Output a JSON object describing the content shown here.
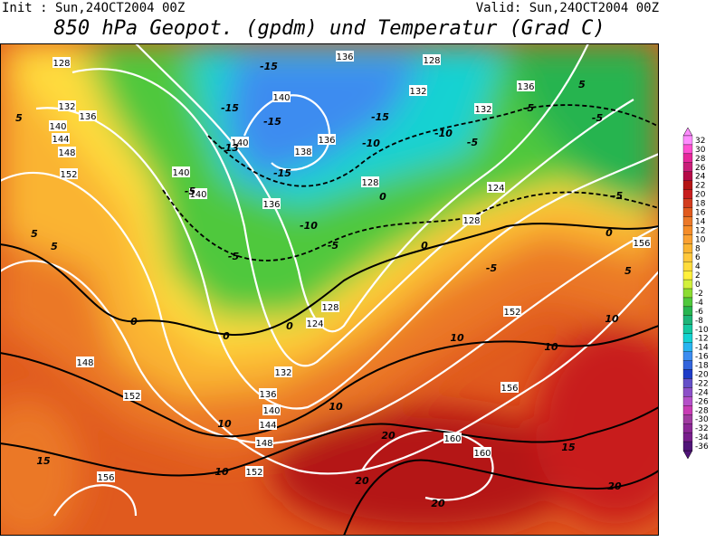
{
  "header": {
    "init": "Init : Sun,24OCT2004 00Z",
    "valid": "Valid: Sun,24OCT2004 00Z",
    "title": "850 hPa Geopot. (gpdm) und Temperatur (Grad C)"
  },
  "geopotential_labels": [
    128,
    136,
    128,
    136,
    132,
    136,
    140,
    144,
    148,
    152,
    140,
    140,
    136,
    138,
    132,
    128,
    140,
    140,
    136,
    124,
    128,
    132,
    156,
    128,
    124,
    152,
    148,
    152,
    132,
    136,
    140,
    144,
    148,
    152,
    156,
    160,
    160,
    156
  ],
  "temperature_labels": [
    -15,
    -15,
    -15,
    -15,
    -10,
    -10,
    -5,
    -5,
    -5,
    -13,
    -15,
    -10,
    -5,
    -5,
    0,
    0,
    -5,
    -5,
    0,
    0,
    0,
    5,
    5,
    5,
    5,
    -5,
    0,
    5,
    10,
    10,
    10,
    10,
    10,
    10,
    15,
    15,
    20,
    20,
    20,
    20
  ],
  "colorbar": {
    "labels": [
      32,
      30,
      28,
      26,
      24,
      22,
      20,
      18,
      16,
      14,
      12,
      10,
      8,
      6,
      4,
      2,
      0,
      -2,
      -4,
      -6,
      -8,
      -10,
      -12,
      -14,
      -16,
      -18,
      -20,
      -22,
      -24,
      -26,
      -28,
      -30,
      -32,
      -34,
      -36
    ],
    "colors": [
      "#ff8cff",
      "#ff50d2",
      "#e6289b",
      "#c81e78",
      "#b40a46",
      "#b41414",
      "#c81e1e",
      "#d23c1e",
      "#e05a1e",
      "#eb7828",
      "#f58c28",
      "#faa032",
      "#fab432",
      "#ffc83c",
      "#ffdc3c",
      "#fff03c",
      "#d2f03c",
      "#8cdc32",
      "#50c83c",
      "#28b450",
      "#1eb478",
      "#14c8a0",
      "#14d2d2",
      "#28b4f0",
      "#3c8cf0",
      "#3264dc",
      "#1e3cc8",
      "#6450c8",
      "#8c50c8",
      "#b450c8",
      "#c83cb4",
      "#a03ca0",
      "#8c2896",
      "#781e8c",
      "#501478"
    ]
  }
}
